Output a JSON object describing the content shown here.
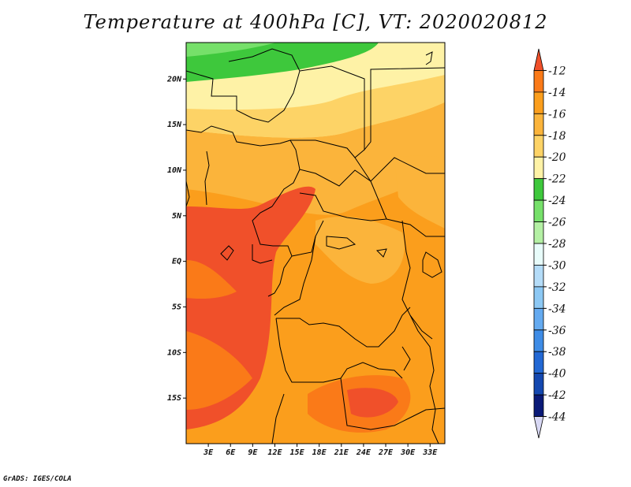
{
  "title": "Temperature at 400hPa [C], VT: 2020020812",
  "credit": "GrADS: IGES/COLA",
  "lat_labels": [
    "20N",
    "15N",
    "10N",
    "5N",
    "EQ",
    "5S",
    "10S",
    "15S"
  ],
  "lat_values": [
    20,
    15,
    10,
    5,
    0,
    -5,
    -10,
    -15
  ],
  "lon_labels": [
    "3E",
    "6E",
    "9E",
    "12E",
    "15E",
    "18E",
    "21E",
    "24E",
    "27E",
    "30E",
    "33E"
  ],
  "lon_values": [
    3,
    6,
    9,
    12,
    15,
    18,
    21,
    24,
    27,
    30,
    33
  ],
  "extent": {
    "lon_min": 0,
    "lon_max": 35,
    "lat_min": -20,
    "lat_max": 24
  },
  "colorbar": {
    "labels": [
      "-12",
      "-14",
      "-16",
      "-18",
      "-20",
      "-22",
      "-24",
      "-26",
      "-28",
      "-30",
      "-32",
      "-34",
      "-36",
      "-38",
      "-40",
      "-42",
      "-44"
    ],
    "colors": [
      "#f0502a",
      "#fa7a18",
      "#fb9e1c",
      "#fbb43b",
      "#fdd366",
      "#fef2a6",
      "#3ec83c",
      "#76e06a",
      "#b4f0a4",
      "#e8fcfa",
      "#b4dcf8",
      "#8cc8f4",
      "#64aaf0",
      "#3e8ce6",
      "#2268d4",
      "#1448b0",
      "#0a1a78",
      "#d8d8f4"
    ]
  }
}
